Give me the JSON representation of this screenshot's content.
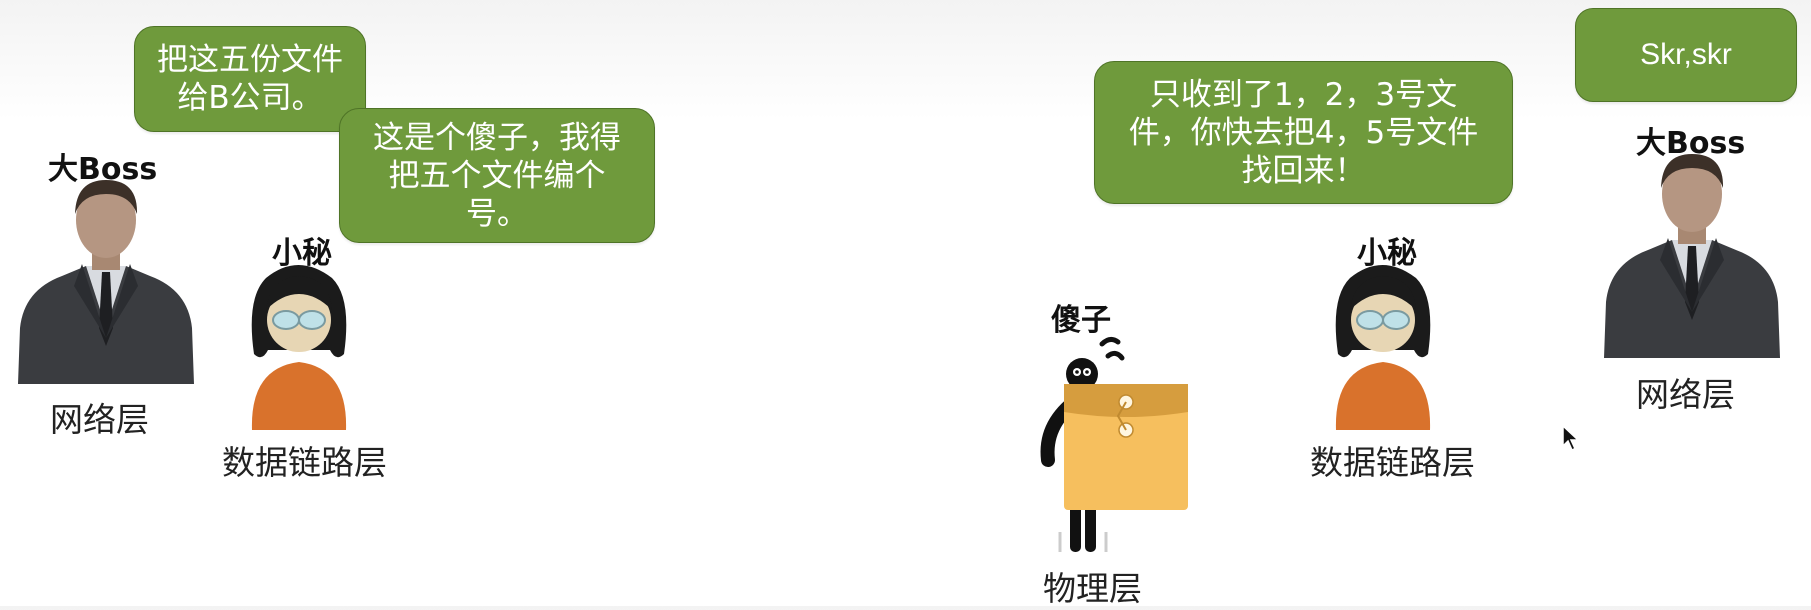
{
  "colors": {
    "bubble_fill": "#6f9a3c",
    "bubble_border": "#4f7427",
    "suit": "#3a3c40",
    "skin": "#b59682",
    "secretary_body": "#d9722c",
    "envelope": "#f6bf5e",
    "label_text": "#222222"
  },
  "left": {
    "boss": {
      "name": "大Boss",
      "layer": "网络层",
      "speech": "把这五份文件给B公司。",
      "icon": "businessman-icon"
    },
    "secretary": {
      "name": "小秘",
      "layer": "数据链路层",
      "speech": "这是个傻子，我得把五个文件编个号。",
      "icon": "secretary-icon"
    }
  },
  "right": {
    "fool": {
      "name": "傻子",
      "layer": "物理层",
      "icon": "stick-figure-with-envelope-icon"
    },
    "secretary": {
      "name": "小秘",
      "layer": "数据链路层",
      "speech": "只收到了1，2，3号文件，你快去把4，5号文件找回来！",
      "icon": "secretary-icon"
    },
    "boss": {
      "name": "大Boss",
      "layer": "网络层",
      "speech": "Skr,skr",
      "icon": "businessman-icon"
    }
  },
  "cursor": "mouse-cursor-icon"
}
